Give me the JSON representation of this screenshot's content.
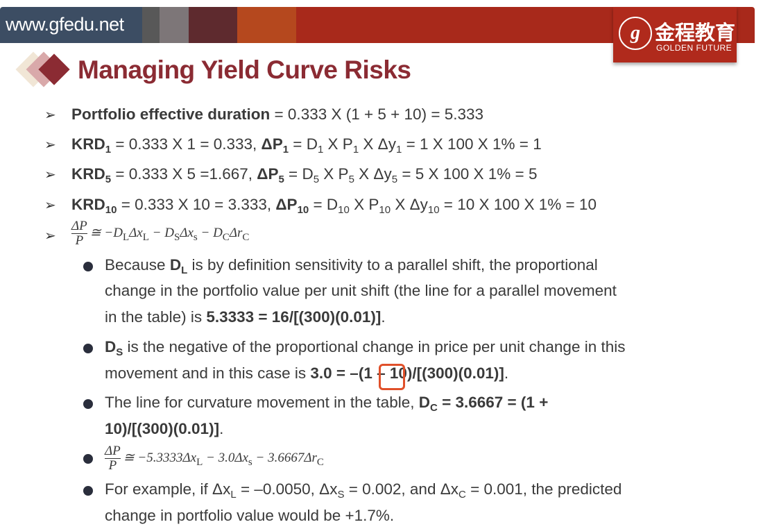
{
  "header": {
    "url": "www.gfedu.net",
    "logo_cn": "金程教育",
    "logo_en": "GOLDEN FUTURE",
    "banner_colors": [
      "#3c4d63",
      "#585858",
      "#7d7678",
      "#5e2a2e",
      "#b5481e",
      "#a8291b"
    ]
  },
  "title": "Managing Yield Curve Risks",
  "accent": "#8b2b33",
  "bullets": [
    [
      {
        "t": "Portfolio effective duration",
        "b": 1
      },
      {
        "t": " = 0.333 X (1 + 5 + 10) = 5.333"
      }
    ],
    [
      {
        "t": "KRD",
        "b": 1
      },
      {
        "t": "1",
        "b": 1,
        "s": 1
      },
      {
        "t": " = 0.333 X 1 = 0.333, "
      },
      {
        "t": "ΔP",
        "b": 1
      },
      {
        "t": "1",
        "b": 1,
        "s": 1
      },
      {
        "t": " = D"
      },
      {
        "t": "1",
        "s": 1
      },
      {
        "t": " X P"
      },
      {
        "t": "1",
        "s": 1
      },
      {
        "t": " X Δy"
      },
      {
        "t": "1",
        "s": 1
      },
      {
        "t": " = 1 X 100 X 1% = 1"
      }
    ],
    [
      {
        "t": "KRD",
        "b": 1
      },
      {
        "t": "5",
        "b": 1,
        "s": 1
      },
      {
        "t": " = 0.333 X 5 =1.667, "
      },
      {
        "t": "ΔP",
        "b": 1
      },
      {
        "t": "5",
        "b": 1,
        "s": 1
      },
      {
        "t": " = D"
      },
      {
        "t": "5",
        "s": 1
      },
      {
        "t": " X P"
      },
      {
        "t": "5",
        "s": 1
      },
      {
        "t": " X Δy"
      },
      {
        "t": "5",
        "s": 1
      },
      {
        "t": " = 5 X 100 X 1% = 5"
      }
    ],
    [
      {
        "t": "KRD",
        "b": 1
      },
      {
        "t": "10",
        "b": 1,
        "s": 1
      },
      {
        "t": " = 0.333 X 10 = 3.333, "
      },
      {
        "t": "ΔP",
        "b": 1
      },
      {
        "t": "10",
        "b": 1,
        "s": 1
      },
      {
        "t": " = D"
      },
      {
        "t": "10",
        "s": 1
      },
      {
        "t": " X P"
      },
      {
        "t": "10",
        "s": 1
      },
      {
        "t": " X Δy"
      },
      {
        "t": "10",
        "s": 1
      },
      {
        "t": " = 10 X 100 X 1% = 10"
      }
    ]
  ],
  "formula1": {
    "num": "ΔP",
    "den": "P",
    "rhs": "≅ −D_LΔx_L − D_SΔx_s − D_CΔr_C"
  },
  "sub_lines": [
    [
      {
        "t": "Because "
      },
      {
        "t": "D",
        "b": 1
      },
      {
        "t": "L",
        "b": 1,
        "s": 1
      },
      {
        "t": " is by definition sensitivity to a parallel shift, the proportional"
      }
    ],
    [
      {
        "t": "change in the portfolio value per unit shift (the line for a parallel movement"
      }
    ],
    [
      {
        "t": "in the table) is "
      },
      {
        "t": "5.3333 = 16/[(300)(0.01)]",
        "b": 1
      },
      {
        "t": "."
      }
    ],
    [
      {
        "t": "D",
        "b": 1
      },
      {
        "t": "S",
        "b": 1,
        "s": 1
      },
      {
        "t": " is the negative of the proportional change in price per unit change in this"
      }
    ],
    [
      {
        "t": "movement and in this case is "
      },
      {
        "t": "3.0 = –(1 – 10)/[(300)(0.01)]",
        "b": 1
      },
      {
        "t": "."
      }
    ],
    [
      {
        "t": "The line for curvature movement in the table, "
      },
      {
        "t": "D",
        "b": 1
      },
      {
        "t": "C",
        "b": 1,
        "s": 1
      },
      {
        "t": " = 3.6667 = (1 +",
        "b": 1
      }
    ],
    [
      {
        "t": "10)/[(300)(0.01)]",
        "b": 1
      },
      {
        "t": "."
      }
    ],
    [
      {
        "t": "For example, if Δx"
      },
      {
        "t": "L",
        "s": 1
      },
      {
        "t": " = –0.0050, Δx"
      },
      {
        "t": "S",
        "s": 1
      },
      {
        "t": " = 0.002, and Δx"
      },
      {
        "t": "C",
        "s": 1
      },
      {
        "t": " = 0.001, the predicted"
      }
    ],
    [
      {
        "t": "change in portfolio value would be +1.7%."
      }
    ]
  ],
  "formula2": {
    "num": "ΔP",
    "den": "P",
    "rhs": "≅ −5.3333Δx_L − 3.0Δx_s − 3.6667Δr_C"
  }
}
